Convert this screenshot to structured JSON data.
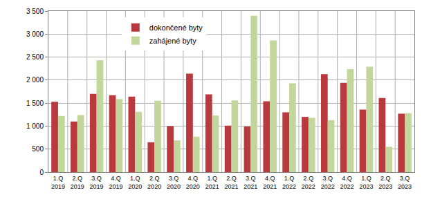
{
  "chart_data": {
    "type": "bar",
    "categories": [
      "1.Q\n2019",
      "2.Q\n2019",
      "3.Q\n2019",
      "4.Q\n2019",
      "1.Q\n2020",
      "2.Q\n2020",
      "3.Q\n2020",
      "4.Q\n2020",
      "1.Q\n2021",
      "2.Q\n2021",
      "3.Q\n2021",
      "4.Q\n2021",
      "1.Q\n2022",
      "2.Q\n2022",
      "3.Q\n2022",
      "4.Q\n2022",
      "1.Q\n2023",
      "2.Q\n2023",
      "3.Q\n2023"
    ],
    "series": [
      {
        "name": "dokončené byty",
        "color": "#b93a3e",
        "values": [
          1530,
          1100,
          1700,
          1670,
          1640,
          650,
          1000,
          2140,
          1690,
          1010,
          990,
          1540,
          1300,
          1200,
          2130,
          1940,
          1360,
          1610,
          1270
        ]
      },
      {
        "name": "zahájené byty",
        "color": "#c3d69b",
        "values": [
          1220,
          1240,
          2430,
          1590,
          1310,
          1550,
          690,
          770,
          1230,
          1560,
          3400,
          2860,
          1930,
          1180,
          1130,
          2240,
          2290,
          550,
          1280
        ]
      }
    ],
    "ylim": [
      0,
      3500
    ],
    "yticks": [
      0,
      500,
      {
        "value": 1000,
        "label": "1 000"
      },
      {
        "value": 1500,
        "label": "1 500"
      },
      {
        "value": 2000,
        "label": "2 000"
      },
      {
        "value": 2500,
        "label": "2 500"
      },
      {
        "value": 3000,
        "label": "3 000"
      },
      {
        "value": 3500,
        "label": "3 500"
      }
    ],
    "grid": true,
    "legend": "top-left"
  }
}
